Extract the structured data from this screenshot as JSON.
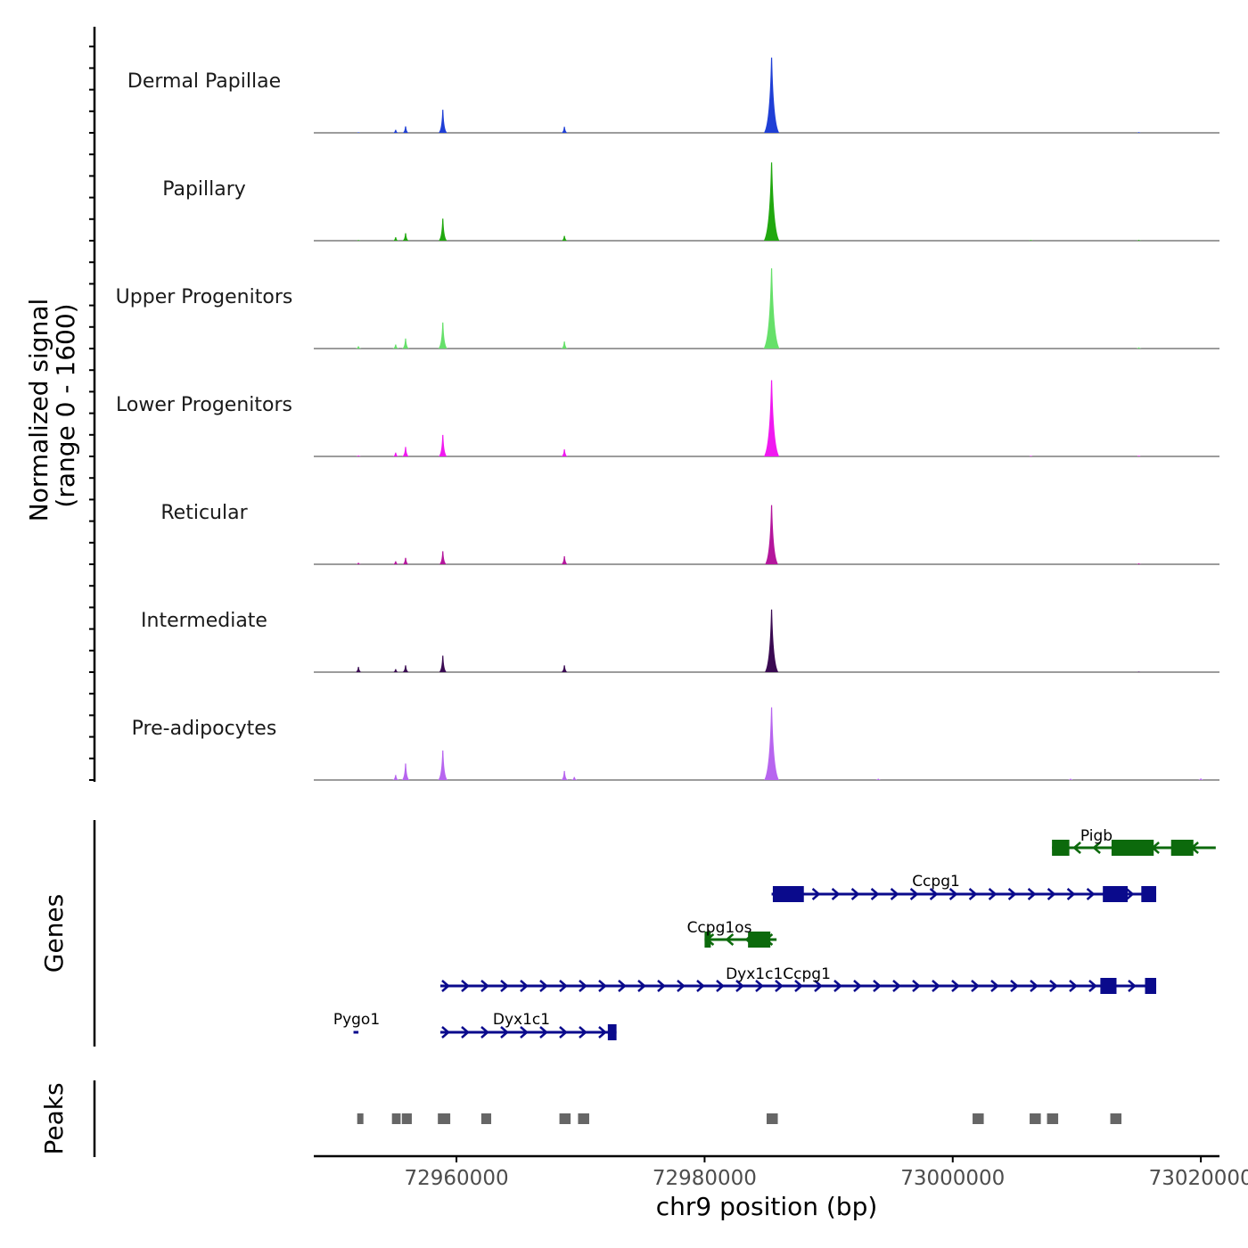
{
  "chart_data": {
    "type": "genome-browser-coverage",
    "y_axis_title_line1": "Normalized signal",
    "y_axis_title_line2": "(range 0 - 1600)",
    "y_range": [
      0,
      1600
    ],
    "x_axis_title": "chr9 position (bp)",
    "x_range": [
      72948500,
      73021500
    ],
    "x_ticks": [
      72960000,
      72980000,
      73000000,
      73020000
    ],
    "x_tick_labels": [
      "72960000",
      "72980000",
      "73000000",
      "73020000"
    ],
    "tracks": [
      {
        "name": "Dermal Papillae",
        "color": "#1f3fd6",
        "peaks": [
          [
            72952100,
            12
          ],
          [
            72955100,
            60
          ],
          [
            72955900,
            130
          ],
          [
            72958900,
            460
          ],
          [
            72968700,
            120
          ],
          [
            72985400,
            1500
          ],
          [
            73015000,
            14
          ]
        ]
      },
      {
        "name": "Papillary",
        "color": "#21a80f",
        "peaks": [
          [
            72952100,
            14
          ],
          [
            72955100,
            70
          ],
          [
            72955900,
            150
          ],
          [
            72958900,
            440
          ],
          [
            72968700,
            95
          ],
          [
            72985400,
            1560
          ],
          [
            73006300,
            14
          ],
          [
            73015000,
            16
          ]
        ]
      },
      {
        "name": "Upper Progenitors",
        "color": "#66e06a",
        "peaks": [
          [
            72952100,
            45
          ],
          [
            72955100,
            80
          ],
          [
            72955900,
            200
          ],
          [
            72958900,
            520
          ],
          [
            72968700,
            140
          ],
          [
            72985400,
            1600
          ],
          [
            73015000,
            22
          ]
        ]
      },
      {
        "name": "Lower Progenitors",
        "color": "#f019f0",
        "peaks": [
          [
            72952100,
            18
          ],
          [
            72955100,
            75
          ],
          [
            72955900,
            190
          ],
          [
            72958900,
            430
          ],
          [
            72968700,
            140
          ],
          [
            72985400,
            1520
          ],
          [
            73006300,
            12
          ],
          [
            73015000,
            14
          ]
        ]
      },
      {
        "name": "Reticular",
        "color": "#b4169c",
        "peaks": [
          [
            72952100,
            30
          ],
          [
            72955100,
            60
          ],
          [
            72955900,
            130
          ],
          [
            72958900,
            260
          ],
          [
            72968700,
            160
          ],
          [
            72985400,
            1180
          ],
          [
            73015000,
            18
          ]
        ]
      },
      {
        "name": "Intermediate",
        "color": "#3a0a52",
        "peaks": [
          [
            72952100,
            105
          ],
          [
            72955100,
            60
          ],
          [
            72955900,
            135
          ],
          [
            72958900,
            330
          ],
          [
            72968700,
            135
          ],
          [
            72985400,
            1250
          ],
          [
            73015000,
            12
          ]
        ]
      },
      {
        "name": "Pre-adipocytes",
        "color": "#b765ef",
        "peaks": [
          [
            72955100,
            100
          ],
          [
            72955900,
            330
          ],
          [
            72958900,
            590
          ],
          [
            72968700,
            180
          ],
          [
            72969500,
            60
          ],
          [
            72985400,
            1450
          ],
          [
            72994000,
            25
          ],
          [
            73009500,
            25
          ],
          [
            73020000,
            30
          ]
        ]
      }
    ],
    "genes_title": "Genes",
    "genes": [
      {
        "name": "Pigb",
        "start": 73008000,
        "end": 73021200,
        "strand": "-",
        "color": "#0c6a0c",
        "exons": [
          [
            73008000,
            73009400
          ],
          [
            73012800,
            73016200
          ],
          [
            73017600,
            73019400
          ]
        ]
      },
      {
        "name": "Ccpg1",
        "start": 72985400,
        "end": 73016400,
        "strand": "+",
        "color": "#0a0a8c",
        "exons": [
          [
            72985500,
            72988000
          ],
          [
            73012100,
            73014100
          ],
          [
            73015200,
            73016400
          ]
        ]
      },
      {
        "name": "Ccpg1os",
        "start": 72980000,
        "end": 72985800,
        "strand": "-",
        "color": "#0c6a0c",
        "exons": [
          [
            72980000,
            72980500
          ],
          [
            72983500,
            72985300
          ]
        ]
      },
      {
        "name": "Dyx1c1Ccpg1",
        "start": 72958700,
        "end": 73016400,
        "strand": "+",
        "color": "#0a0a8c",
        "exons": [
          [
            73011900,
            73013200
          ],
          [
            73015500,
            73016400
          ]
        ]
      },
      {
        "name": "Pygo1",
        "start": 72951700,
        "end": 72952100,
        "strand": "+",
        "color": "#0a0a8c",
        "exons": []
      },
      {
        "name": "Dyx1c1",
        "start": 72958700,
        "end": 72972900,
        "strand": "+",
        "color": "#0a0a8c",
        "exons": [
          [
            72972200,
            72972900
          ]
        ]
      }
    ],
    "peaks_title": "Peaks",
    "peak_color": "#666666",
    "peak_regions": [
      [
        72952000,
        72952500
      ],
      [
        72954800,
        72955500
      ],
      [
        72955600,
        72956400
      ],
      [
        72958500,
        72959500
      ],
      [
        72962000,
        72962800
      ],
      [
        72968300,
        72969200
      ],
      [
        72969800,
        72970700
      ],
      [
        72985000,
        72985900
      ],
      [
        73001600,
        73002500
      ],
      [
        73006200,
        73007100
      ],
      [
        73007600,
        73008500
      ],
      [
        73012700,
        73013600
      ]
    ]
  }
}
